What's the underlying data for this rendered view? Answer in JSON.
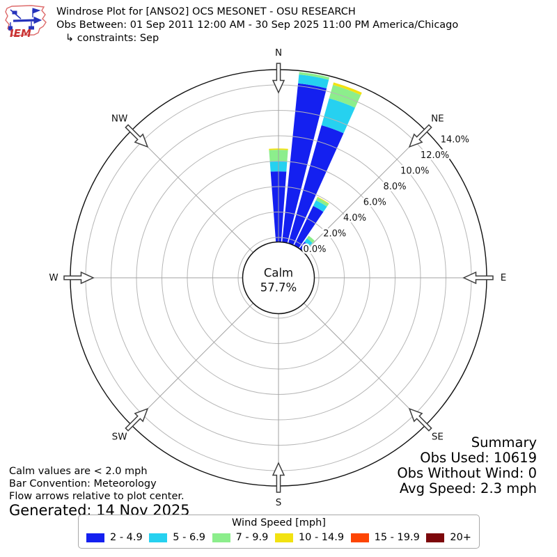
{
  "header": {
    "logo_text": "IEM",
    "title": "Windrose Plot for [ANSO2] OCS MESONET - OSU RESEARCH",
    "obs_between": "Obs Between: 01 Sep 2011 12:00 AM - 30 Sep 2025 11:00 PM America/Chicago",
    "constraints": "↳ constraints: Sep"
  },
  "chart_data": {
    "type": "windrose",
    "units": "mph",
    "calm": {
      "label": "Calm",
      "percent": 57.7,
      "percent_label": "57.7%"
    },
    "compass_labels": [
      "N",
      "NE",
      "E",
      "SE",
      "S",
      "SW",
      "W",
      "NW"
    ],
    "flow_arrow_directions_deg": [
      0,
      45,
      90,
      135,
      180,
      225,
      270,
      315
    ],
    "radial_ticks": [
      {
        "percent": 0,
        "label": "0.0%"
      },
      {
        "percent": 2,
        "label": "2.0%"
      },
      {
        "percent": 4,
        "label": "4.0%"
      },
      {
        "percent": 6,
        "label": "6.0%"
      },
      {
        "percent": 8,
        "label": "8.0%"
      },
      {
        "percent": 10,
        "label": "10.0%"
      },
      {
        "percent": 12,
        "label": "12.0%"
      },
      {
        "percent": 14,
        "label": "14.0%"
      }
    ],
    "radial_axis_max_percent": 13.2,
    "grid": true,
    "speed_bins": [
      {
        "label": "2 - 4.9",
        "color": "#1420f0"
      },
      {
        "label": "5 - 6.9",
        "color": "#26d1f0"
      },
      {
        "label": "7 - 9.9",
        "color": "#8cee8c"
      },
      {
        "label": "10 - 14.9",
        "color": "#f2e211"
      },
      {
        "label": "15 - 19.9",
        "color": "#fd4503"
      },
      {
        "label": "20+",
        "color": "#7c070b"
      }
    ],
    "bars": [
      {
        "direction_deg": 0,
        "segments_percent": [
          5.2,
          0.8,
          0.9,
          0.1,
          0,
          0
        ],
        "total_percent": 7.0
      },
      {
        "direction_deg": 10,
        "segments_percent": [
          12.2,
          0.7,
          0.2,
          0,
          0,
          0
        ],
        "total_percent": 13.1
      },
      {
        "direction_deg": 20,
        "segments_percent": [
          9.3,
          2.2,
          1.1,
          0.2,
          0,
          0
        ],
        "total_percent": 12.8
      },
      {
        "direction_deg": 30,
        "segments_percent": [
          3.1,
          0.5,
          0.25,
          0.05,
          0,
          0
        ],
        "total_percent": 3.9
      },
      {
        "direction_deg": 40,
        "segments_percent": [
          0.32,
          0.33,
          0.25,
          0,
          0,
          0
        ],
        "total_percent": 0.9
      }
    ]
  },
  "summary": {
    "title": "Summary",
    "obs_used": "Obs Used: 10619",
    "obs_without_wind": "Obs Without Wind: 0",
    "avg_speed": "Avg Speed: 2.3 mph"
  },
  "footer": {
    "notes": [
      "Calm values are < 2.0 mph",
      "Bar Convention: Meteorology",
      "Flow arrows relative to plot center."
    ],
    "generated": "Generated: 14 Nov 2025"
  },
  "legend": {
    "title": "Wind Speed [mph]"
  }
}
